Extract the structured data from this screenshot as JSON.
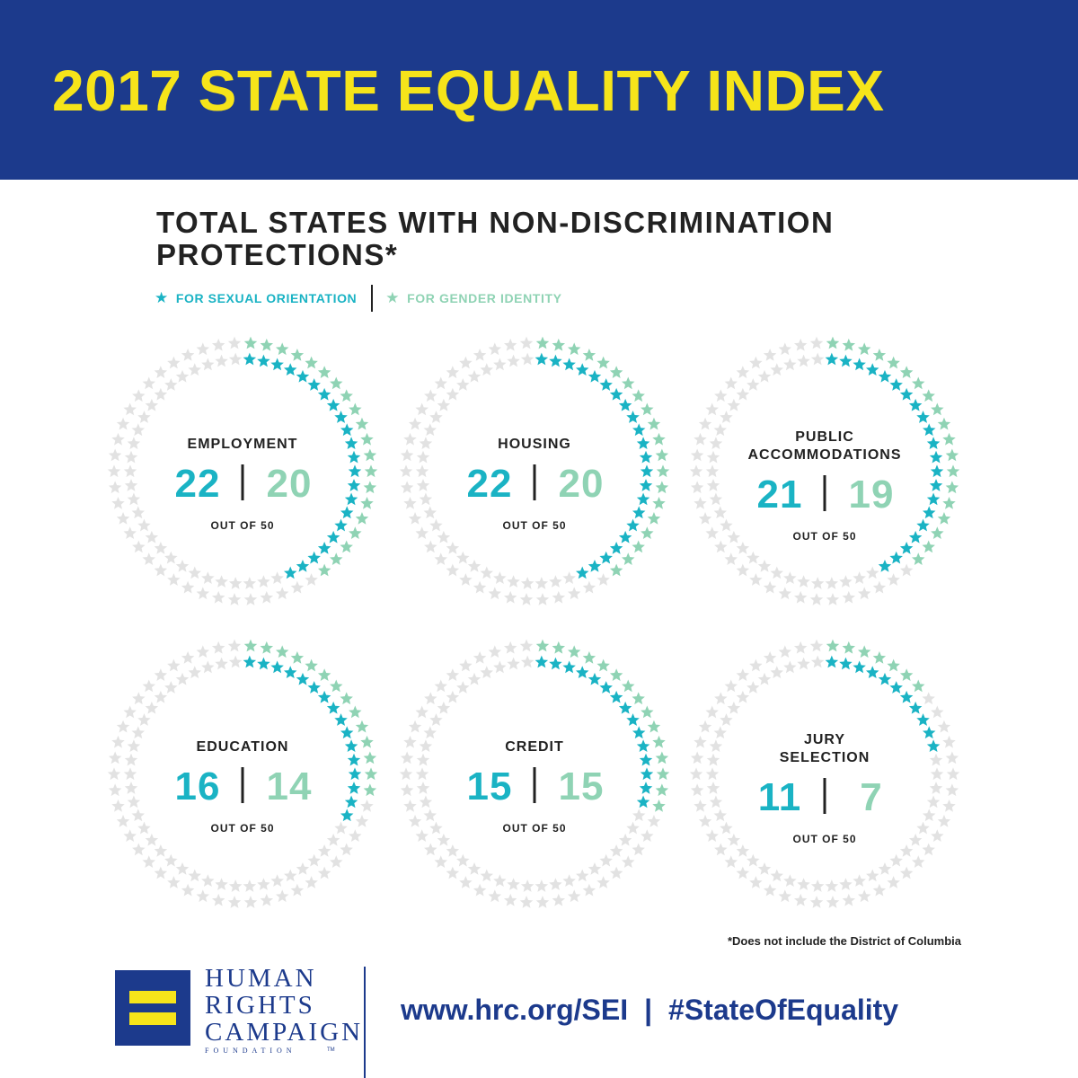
{
  "banner": {
    "title": "2017 STATE EQUALITY INDEX"
  },
  "heading": {
    "line1": "TOTAL STATES WITH NON-DISCRIMINATION",
    "line2": "PROTECTIONS*"
  },
  "legend": {
    "orientation": "FOR SEXUAL ORIENTATION",
    "identity": "FOR GENDER IDENTITY",
    "star_glyph": "★"
  },
  "colors": {
    "banner": "#1c3a8c",
    "title": "#f6e41a",
    "orientation": "#1ab3c4",
    "identity": "#8fd3b4",
    "empty": "#e2e2e2",
    "text": "#222222"
  },
  "chart_data": {
    "type": "radial-star-count",
    "total": 50,
    "total_label": "OUT OF 50",
    "series": [
      {
        "name": "FOR SEXUAL ORIENTATION",
        "values": [
          22,
          22,
          21,
          16,
          15,
          11
        ]
      },
      {
        "name": "FOR GENDER IDENTITY",
        "values": [
          20,
          20,
          19,
          14,
          15,
          7
        ]
      }
    ],
    "categories": [
      {
        "label_lines": [
          "EMPLOYMENT"
        ],
        "orientation": 22,
        "identity": 20
      },
      {
        "label_lines": [
          "HOUSING"
        ],
        "orientation": 22,
        "identity": 20
      },
      {
        "label_lines": [
          "PUBLIC",
          "ACCOMMODATIONS"
        ],
        "orientation": 21,
        "identity": 19
      },
      {
        "label_lines": [
          "EDUCATION"
        ],
        "orientation": 16,
        "identity": 14
      },
      {
        "label_lines": [
          "CREDIT"
        ],
        "orientation": 15,
        "identity": 15
      },
      {
        "label_lines": [
          "JURY",
          "SELECTION"
        ],
        "orientation": 11,
        "identity": 7
      }
    ]
  },
  "footnote": "*Does not include the District of Columbia",
  "footer": {
    "org_line1": "HUMAN",
    "org_line2": "RIGHTS",
    "org_line3": "CAMPAIGN",
    "org_sub": "FOUNDATION",
    "tm": "TM",
    "url": "www.hrc.org/SEI",
    "separator": "|",
    "hashtag": "#StateOfEquality"
  }
}
